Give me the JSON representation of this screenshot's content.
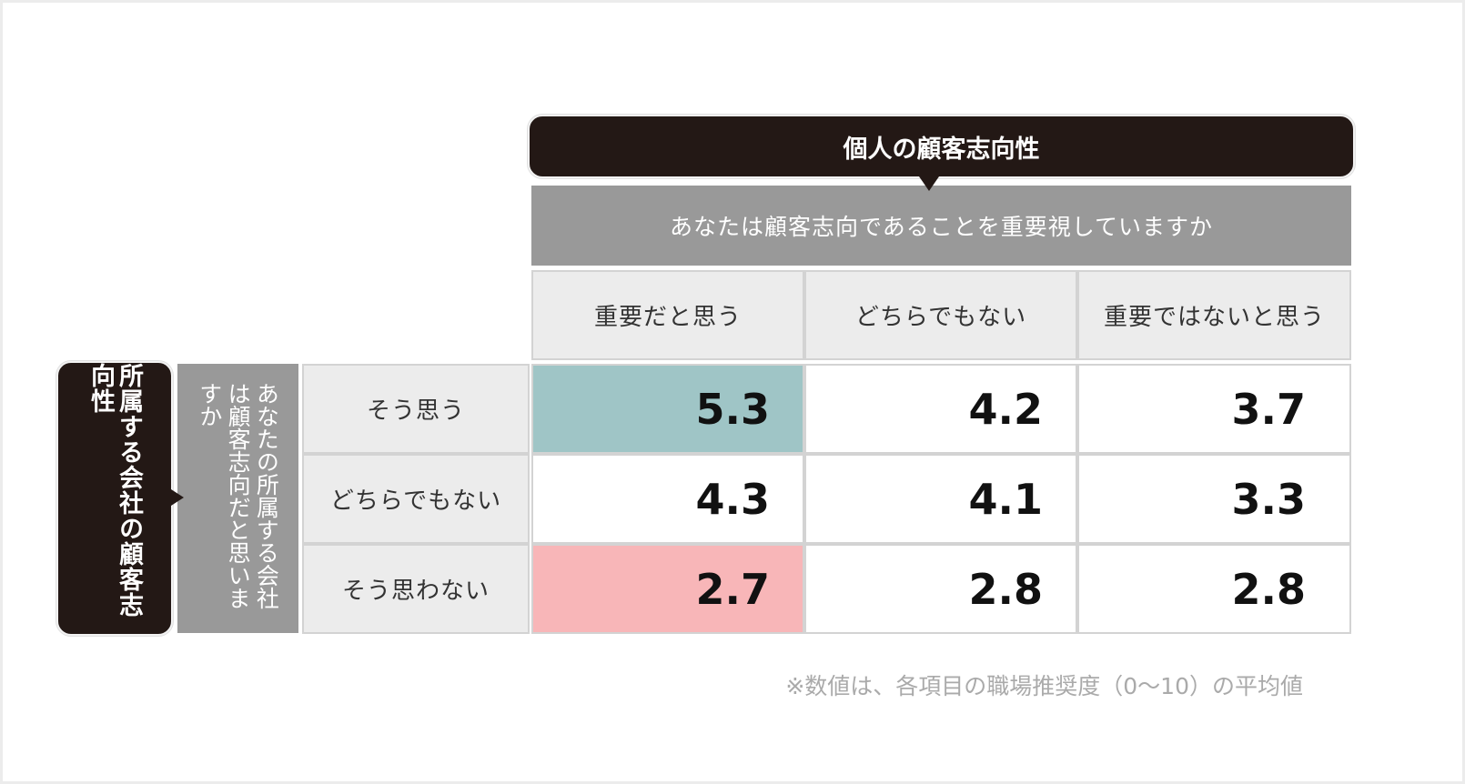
{
  "chart_data": {
    "type": "table",
    "column_group_title": "個人の顧客志向性",
    "column_question": "あなたは顧客志向であることを重要視していますか",
    "columns": [
      "重要だと思う",
      "どちらでもない",
      "重要ではないと思う"
    ],
    "row_group_title": "所属する会社の顧客志向性",
    "row_question": "あなたの所属する会社は顧客志向だと思いますか",
    "rows": [
      "そう思う",
      "どちらでもない",
      "そう思わない"
    ],
    "values": [
      [
        "5.3",
        "4.2",
        "3.7"
      ],
      [
        "4.3",
        "4.1",
        "3.3"
      ],
      [
        "2.7",
        "2.8",
        "2.8"
      ]
    ],
    "highlight_colors": {
      "high": "#9fc5c6",
      "low": "#f8b6b8"
    },
    "note": "※数値は、各項目の職場推奨度（0〜10）の平均値"
  }
}
